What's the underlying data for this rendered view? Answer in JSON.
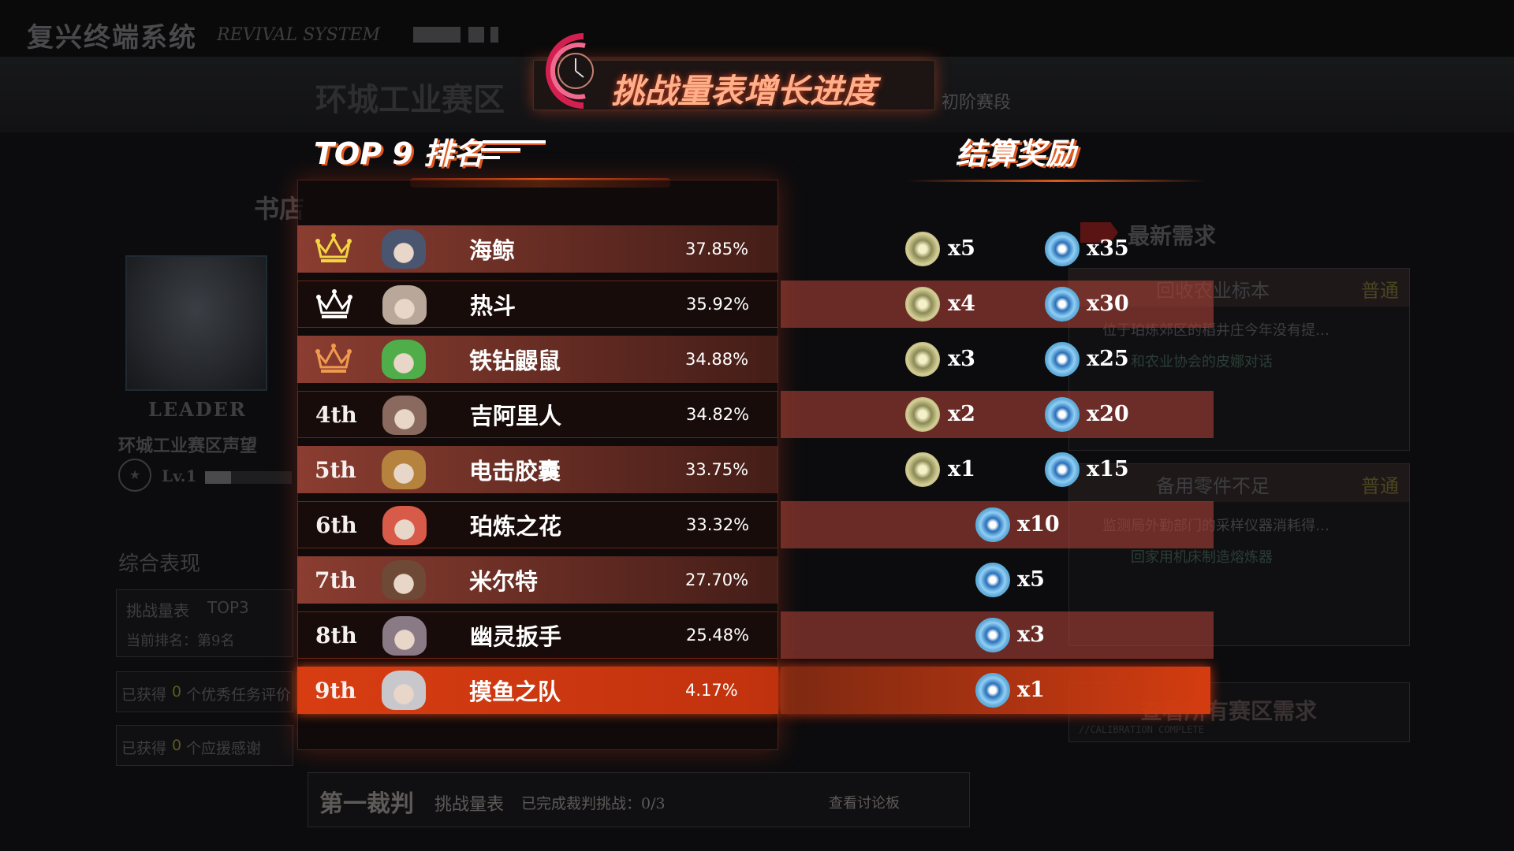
{
  "header": {
    "title": "复兴终端系统",
    "subtitle": "REVIVAL SYSTEM"
  },
  "banner": {
    "title": "挑战量表增长进度",
    "stage": "初阶赛段",
    "bg_text": "环城工业赛区"
  },
  "ranking": {
    "title": "TOP 9 排名",
    "rows": [
      {
        "rank": "1",
        "crown": "gold",
        "name": "海鲸",
        "percent": "37.85%",
        "avatar_color": "#4a5670"
      },
      {
        "rank": "2",
        "crown": "silver",
        "name": "热斗",
        "percent": "35.92%",
        "avatar_color": "#b9a89a"
      },
      {
        "rank": "3",
        "crown": "bronze",
        "name": "铁钻鼹鼠",
        "percent": "34.88%",
        "avatar_color": "#4fae4a"
      },
      {
        "rank": "4th",
        "name": "吉阿里人",
        "percent": "34.82%",
        "avatar_color": "#8a6a5e"
      },
      {
        "rank": "5th",
        "name": "电击胶囊",
        "percent": "33.75%",
        "avatar_color": "#b6833e"
      },
      {
        "rank": "6th",
        "name": "珀炼之花",
        "percent": "33.32%",
        "avatar_color": "#d85a48"
      },
      {
        "rank": "7th",
        "name": "米尔特",
        "percent": "27.70%",
        "avatar_color": "#6e4a36"
      },
      {
        "rank": "8th",
        "name": "幽灵扳手",
        "percent": "25.48%",
        "avatar_color": "#8a7a86"
      },
      {
        "rank": "9th",
        "name": "摸鱼之队",
        "percent": "4.17%",
        "avatar_color": "#c8c8cc"
      }
    ]
  },
  "rewards": {
    "title": "结算奖励",
    "rows": [
      {
        "gold": "x5",
        "blue": "x35"
      },
      {
        "gold": "x4",
        "blue": "x30"
      },
      {
        "gold": "x3",
        "blue": "x25"
      },
      {
        "gold": "x2",
        "blue": "x20"
      },
      {
        "gold": "x1",
        "blue": "x15"
      },
      {
        "blue": "x10"
      },
      {
        "blue": "x5"
      },
      {
        "blue": "x3"
      },
      {
        "blue": "x1"
      }
    ]
  },
  "left_panel": {
    "shop": "书店",
    "leader": "LEADER",
    "reputation": "环城工业赛区声望",
    "level": "Lv.1",
    "level_progress": 0.3,
    "performance": "综合表现",
    "challenge": "挑战量表",
    "top": "TOP3",
    "current_rank": "当前排名：第9名",
    "earned1_a": "已获得",
    "earned1_n": "0",
    "earned1_b": "个优秀任务评价",
    "earned2_a": "已获得",
    "earned2_n": "0",
    "earned2_b": "个应援感谢"
  },
  "middle_bg": {
    "judge": "第一裁判",
    "scale": "挑战量表",
    "done": "已完成裁判挑战：0/3",
    "forum": "查看讨论板"
  },
  "right_panel": {
    "title": "最新需求",
    "quests": [
      {
        "name": "回收农业标本",
        "tag": "普通",
        "desc": "位于珀炼郊区的稻井庄今年没有提…",
        "step": "和农业协会的皮娜对话"
      },
      {
        "name": "备用零件不足",
        "tag": "普通",
        "desc": "监测局外勤部门的采样仪器消耗得…",
        "step": "回家用机床制造熔炼器"
      }
    ],
    "all_button": "查看所有赛区需求",
    "all_sub": "//CALIBRATION COMPLETE"
  },
  "colors": {
    "accent": "#e05a1e",
    "highlight": "#d83d12",
    "gold": "#f2d640",
    "silver": "#ffffff",
    "bronze": "#f09a50"
  }
}
